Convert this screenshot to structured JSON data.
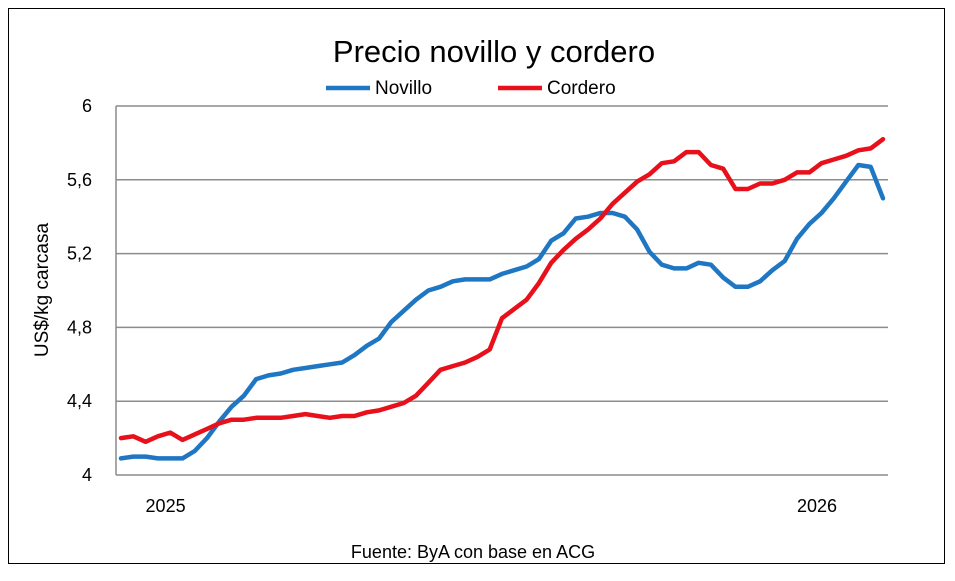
{
  "chart_data": {
    "type": "line",
    "title": "Precio novillo y cordero",
    "ylabel": "US$/kg carcasa",
    "xlabel": "",
    "ylim": [
      4,
      6
    ],
    "y_ticks": [
      "4",
      "4,4",
      "4,8",
      "5,2",
      "5,6",
      "6"
    ],
    "y_tick_values": [
      4,
      4.4,
      4.8,
      5.2,
      5.6,
      6
    ],
    "x_tick_labels": [
      {
        "label": "2025",
        "index": 2
      },
      {
        "label": "2026",
        "index": 55
      }
    ],
    "grid": true,
    "legend_position": "top-center",
    "source": "Fuente: ByA con base en ACG",
    "series": [
      {
        "name": "Novillo",
        "color": "#1f77c4",
        "values": [
          4.09,
          4.1,
          4.1,
          4.09,
          4.09,
          4.09,
          4.13,
          4.2,
          4.29,
          4.37,
          4.43,
          4.52,
          4.54,
          4.55,
          4.57,
          4.58,
          4.59,
          4.6,
          4.61,
          4.65,
          4.7,
          4.74,
          4.83,
          4.89,
          4.95,
          5.0,
          5.02,
          5.05,
          5.06,
          5.06,
          5.06,
          5.09,
          5.11,
          5.13,
          5.17,
          5.27,
          5.31,
          5.39,
          5.4,
          5.42,
          5.42,
          5.4,
          5.33,
          5.21,
          5.14,
          5.12,
          5.12,
          5.15,
          5.14,
          5.07,
          5.02,
          5.02,
          5.05,
          5.11,
          5.16,
          5.28,
          5.36,
          5.42,
          5.5,
          5.59,
          5.68,
          5.67,
          5.5
        ]
      },
      {
        "name": "Cordero",
        "color": "#e8101a",
        "values": [
          4.2,
          4.21,
          4.18,
          4.21,
          4.23,
          4.19,
          4.22,
          4.25,
          4.28,
          4.3,
          4.3,
          4.31,
          4.31,
          4.31,
          4.32,
          4.33,
          4.32,
          4.31,
          4.32,
          4.32,
          4.34,
          4.35,
          4.37,
          4.39,
          4.43,
          4.5,
          4.57,
          4.59,
          4.61,
          4.64,
          4.68,
          4.85,
          4.9,
          4.95,
          5.04,
          5.15,
          5.22,
          5.28,
          5.33,
          5.39,
          5.47,
          5.53,
          5.59,
          5.63,
          5.69,
          5.7,
          5.75,
          5.75,
          5.68,
          5.66,
          5.55,
          5.55,
          5.58,
          5.58,
          5.6,
          5.64,
          5.64,
          5.69,
          5.71,
          5.73,
          5.76,
          5.77,
          5.82
        ]
      }
    ]
  }
}
